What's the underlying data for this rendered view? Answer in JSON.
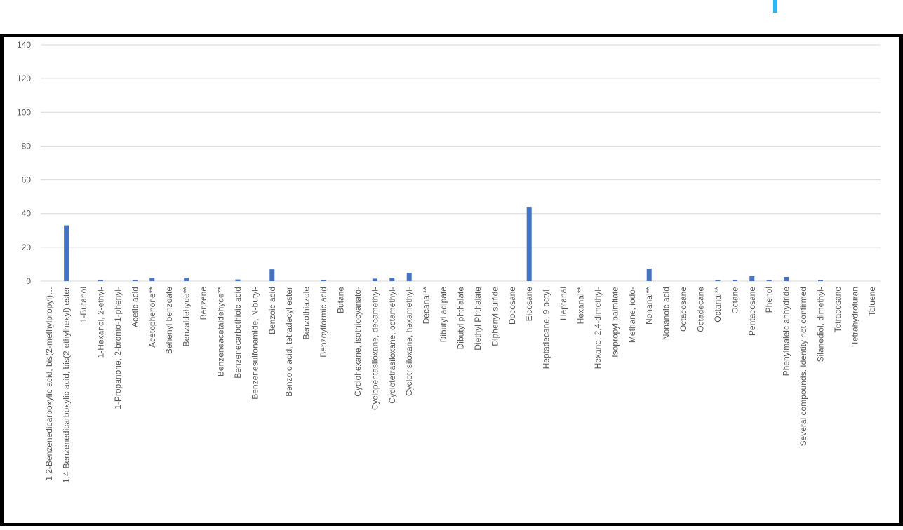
{
  "chart_data": {
    "type": "bar",
    "categories": [
      "1,2-Benzenedicarboxylic acid, bis(2-methylpropyl)…",
      "1,4-Benzenedicarboxylic acid, bis(2-ethylhexyl) ester",
      "1-Butanol",
      "1-Hexanol, 2-ethyl-",
      "1-Propanone, 2-bromo-1-phenyl-",
      "Acetic acid",
      "Acetophenone**",
      "Behenyl benzoate",
      "Benzaldehyde**",
      "Benzene",
      "Benzeneacetaldehyde**",
      "Benzenecarbothioic acid",
      "Benzenesulfonamide, N-butyl-",
      "Benzoic acid",
      "Benzoic acid, tetradecyl ester",
      "Benzothiazole",
      "Benzoylformic acid",
      "Butane",
      "Cyclohexane, isothiocyanato-",
      "Cyclopentasiloxane, decamethyl-",
      "Cyclotetrasiloxane, octamethyl-",
      "Cyclotrisiloxane, hexamethyl-",
      "Decanal**",
      "Dibutyl adipate",
      "Dibutyl phthalate",
      "Diethyl Phthalate",
      "Diphenyl sulfide",
      "Docosane",
      "Eicosane",
      "Heptadecane, 9-octyl-",
      "Heptanal",
      "Hexanal**",
      "Hexane, 2,4-dimethyl-",
      "Isopropyl palmitate",
      "Methane, iodo-",
      "Nonanal**",
      "Nonanoic acid",
      "Octacosane",
      "Octadecane",
      "Octanal**",
      "Octane",
      "Pentacosane",
      "Phenol",
      "Phenylmaleic anhydride",
      "Several compounds. Identity not confirmed",
      "Silanediol, dimethyl-",
      "Tetracosane",
      "Tetrahydrofuran",
      "Toluene"
    ],
    "values": [
      0,
      33,
      0,
      0.5,
      0,
      0.5,
      2,
      0,
      2,
      0,
      0,
      1,
      0,
      7,
      0,
      0,
      0.5,
      0,
      0,
      1.5,
      2,
      5,
      0,
      0,
      0,
      0,
      0,
      0,
      44,
      0,
      0,
      0,
      0,
      0,
      0,
      7.5,
      0,
      0,
      0,
      0.5,
      0.5,
      3,
      0.5,
      2.5,
      0,
      0.5,
      0,
      0,
      0
    ],
    "color": "#4472c4",
    "ylim": [
      0,
      140
    ],
    "yticks": [
      0,
      20,
      40,
      60,
      80,
      100,
      120,
      140
    ],
    "grid": true
  }
}
